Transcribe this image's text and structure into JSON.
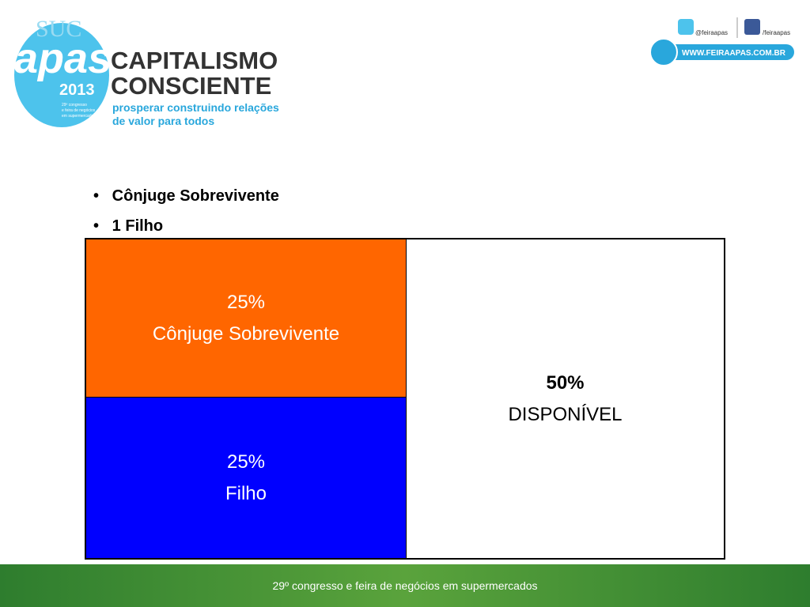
{
  "header": {
    "logo": {
      "overlay": "SUC",
      "name": "apas",
      "year": "2013",
      "tagline": [
        "29º congresso",
        "e feira de negócios",
        "em supermercados"
      ]
    },
    "title": [
      "CAPITALISMO",
      "CONSCIENTE"
    ],
    "subtitle": [
      "prosperar construindo relações",
      "de valor para todos"
    ],
    "social": {
      "twitter": "@feiraapas",
      "facebook": "/feiraapas",
      "website": "WWW.FEIRAAPAS.COM.BR"
    }
  },
  "bullets": [
    "Cônjuge Sobrevivente",
    "1 Filho"
  ],
  "table": {
    "cells": [
      {
        "percent": "25%",
        "label": "Cônjuge Sobrevivente"
      },
      {
        "percent": "25%",
        "label": "Filho"
      },
      {
        "percent": "50%",
        "label": "DISPONÍVEL"
      }
    ]
  },
  "footer": "29º congresso e feira de negócios em supermercados"
}
